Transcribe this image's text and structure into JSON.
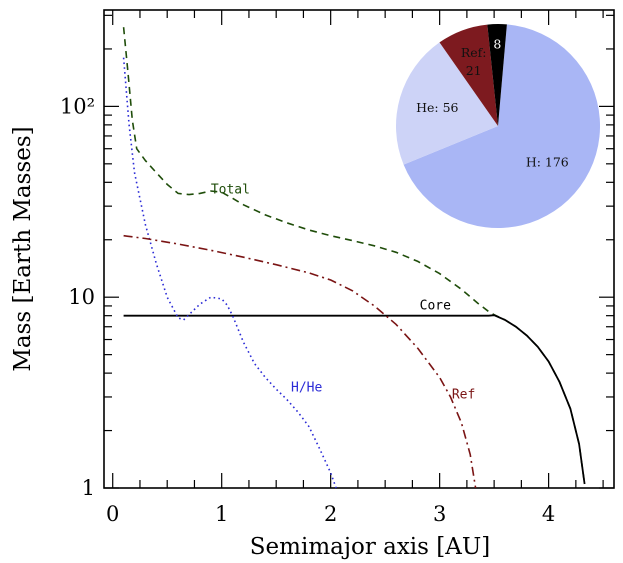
{
  "chart_data": [
    {
      "type": "line",
      "title": "",
      "xlabel": "Semimajor axis [AU]",
      "ylabel": "Mass [Earth Masses]",
      "xlim": [
        -0.08,
        4.6
      ],
      "ylim": [
        1,
        320
      ],
      "yscale": "log",
      "grid": false,
      "x_ticks": [
        {
          "value": 0,
          "label": "0"
        },
        {
          "value": 1,
          "label": "1"
        },
        {
          "value": 2,
          "label": "2"
        },
        {
          "value": 3,
          "label": "3"
        },
        {
          "value": 4,
          "label": "4"
        }
      ],
      "y_ticks": [
        {
          "value": 1,
          "label": "1"
        },
        {
          "value": 10,
          "label": "10"
        },
        {
          "value": 100,
          "label": "10²"
        }
      ],
      "series": [
        {
          "name": "Total",
          "color": "#1f4d0a",
          "dash": "dashed",
          "label_at": [
            1.08,
            35
          ],
          "points": [
            [
              0.1,
              260
            ],
            [
              0.14,
              150
            ],
            [
              0.18,
              85
            ],
            [
              0.22,
              60
            ],
            [
              0.3,
              52
            ],
            [
              0.4,
              45
            ],
            [
              0.5,
              39
            ],
            [
              0.6,
              35
            ],
            [
              0.7,
              34.5
            ],
            [
              0.8,
              35
            ],
            [
              0.9,
              36
            ],
            [
              1.0,
              35.5
            ],
            [
              1.1,
              33
            ],
            [
              1.2,
              30.5
            ],
            [
              1.4,
              27
            ],
            [
              1.6,
              24.5
            ],
            [
              1.8,
              22.5
            ],
            [
              2.0,
              21
            ],
            [
              2.2,
              19.8
            ],
            [
              2.4,
              18.6
            ],
            [
              2.6,
              17.2
            ],
            [
              2.8,
              15.4
            ],
            [
              3.0,
              13.3
            ],
            [
              3.2,
              11
            ],
            [
              3.35,
              9.3
            ],
            [
              3.45,
              8.4
            ],
            [
              3.5,
              8.1
            ],
            [
              3.6,
              7.6
            ],
            [
              3.7,
              7.0
            ],
            [
              3.8,
              6.3
            ],
            [
              3.9,
              5.5
            ],
            [
              4.0,
              4.6
            ],
            [
              4.1,
              3.6
            ],
            [
              4.2,
              2.6
            ],
            [
              4.28,
              1.7
            ],
            [
              4.33,
              1.05
            ]
          ]
        },
        {
          "name": "Core",
          "color": "#000000",
          "dash": "solid",
          "label_at": [
            2.96,
            8.6
          ],
          "points": [
            [
              0.1,
              8
            ],
            [
              3.45,
              8
            ],
            [
              3.5,
              8.05
            ],
            [
              3.6,
              7.6
            ],
            [
              3.7,
              7.0
            ],
            [
              3.8,
              6.3
            ],
            [
              3.9,
              5.5
            ],
            [
              4.0,
              4.6
            ],
            [
              4.1,
              3.6
            ],
            [
              4.2,
              2.6
            ],
            [
              4.28,
              1.7
            ],
            [
              4.33,
              1.05
            ]
          ]
        },
        {
          "name": "H/He",
          "color": "#2b2bd6",
          "dash": "dotted",
          "label_at": [
            1.78,
            3.2
          ],
          "points": [
            [
              0.1,
              180
            ],
            [
              0.15,
              80
            ],
            [
              0.2,
              45
            ],
            [
              0.3,
              24
            ],
            [
              0.4,
              15
            ],
            [
              0.5,
              10
            ],
            [
              0.6,
              7.8
            ],
            [
              0.65,
              7.6
            ],
            [
              0.7,
              8.1
            ],
            [
              0.8,
              9.2
            ],
            [
              0.9,
              10
            ],
            [
              1.0,
              9.8
            ],
            [
              1.05,
              9.1
            ],
            [
              1.1,
              8
            ],
            [
              1.2,
              5.8
            ],
            [
              1.3,
              4.5
            ],
            [
              1.4,
              3.8
            ],
            [
              1.5,
              3.3
            ],
            [
              1.6,
              2.9
            ],
            [
              1.7,
              2.5
            ],
            [
              1.8,
              2.1
            ],
            [
              1.9,
              1.6
            ],
            [
              2.0,
              1.2
            ],
            [
              2.05,
              1.0
            ]
          ]
        },
        {
          "name": "Ref",
          "color": "#7a1414",
          "dash": "dashdot",
          "label_at": [
            3.22,
            2.95
          ],
          "points": [
            [
              0.1,
              21
            ],
            [
              0.3,
              20.3
            ],
            [
              0.6,
              19
            ],
            [
              0.9,
              17.6
            ],
            [
              1.2,
              16.2
            ],
            [
              1.5,
              14.8
            ],
            [
              1.8,
              13.4
            ],
            [
              2.0,
              12.3
            ],
            [
              2.2,
              10.8
            ],
            [
              2.4,
              9
            ],
            [
              2.6,
              7.2
            ],
            [
              2.8,
              5.4
            ],
            [
              3.0,
              3.8
            ],
            [
              3.1,
              3.0
            ],
            [
              3.2,
              2.2
            ],
            [
              3.28,
              1.5
            ],
            [
              3.33,
              1.0
            ]
          ]
        }
      ]
    },
    {
      "type": "pie",
      "title": "",
      "slices": [
        {
          "name": "H",
          "value": 176,
          "label": "H: 176",
          "color": "#a9b6f5"
        },
        {
          "name": "He",
          "value": 56,
          "label": "He: 56",
          "color": "#cdd3f7"
        },
        {
          "name": "Ref",
          "value": 21,
          "label_top": "Ref:",
          "label_bottom": "21",
          "color": "#7d1a1f"
        },
        {
          "name": "Core",
          "value": 8,
          "label": "8",
          "color": "#000000"
        }
      ]
    }
  ]
}
